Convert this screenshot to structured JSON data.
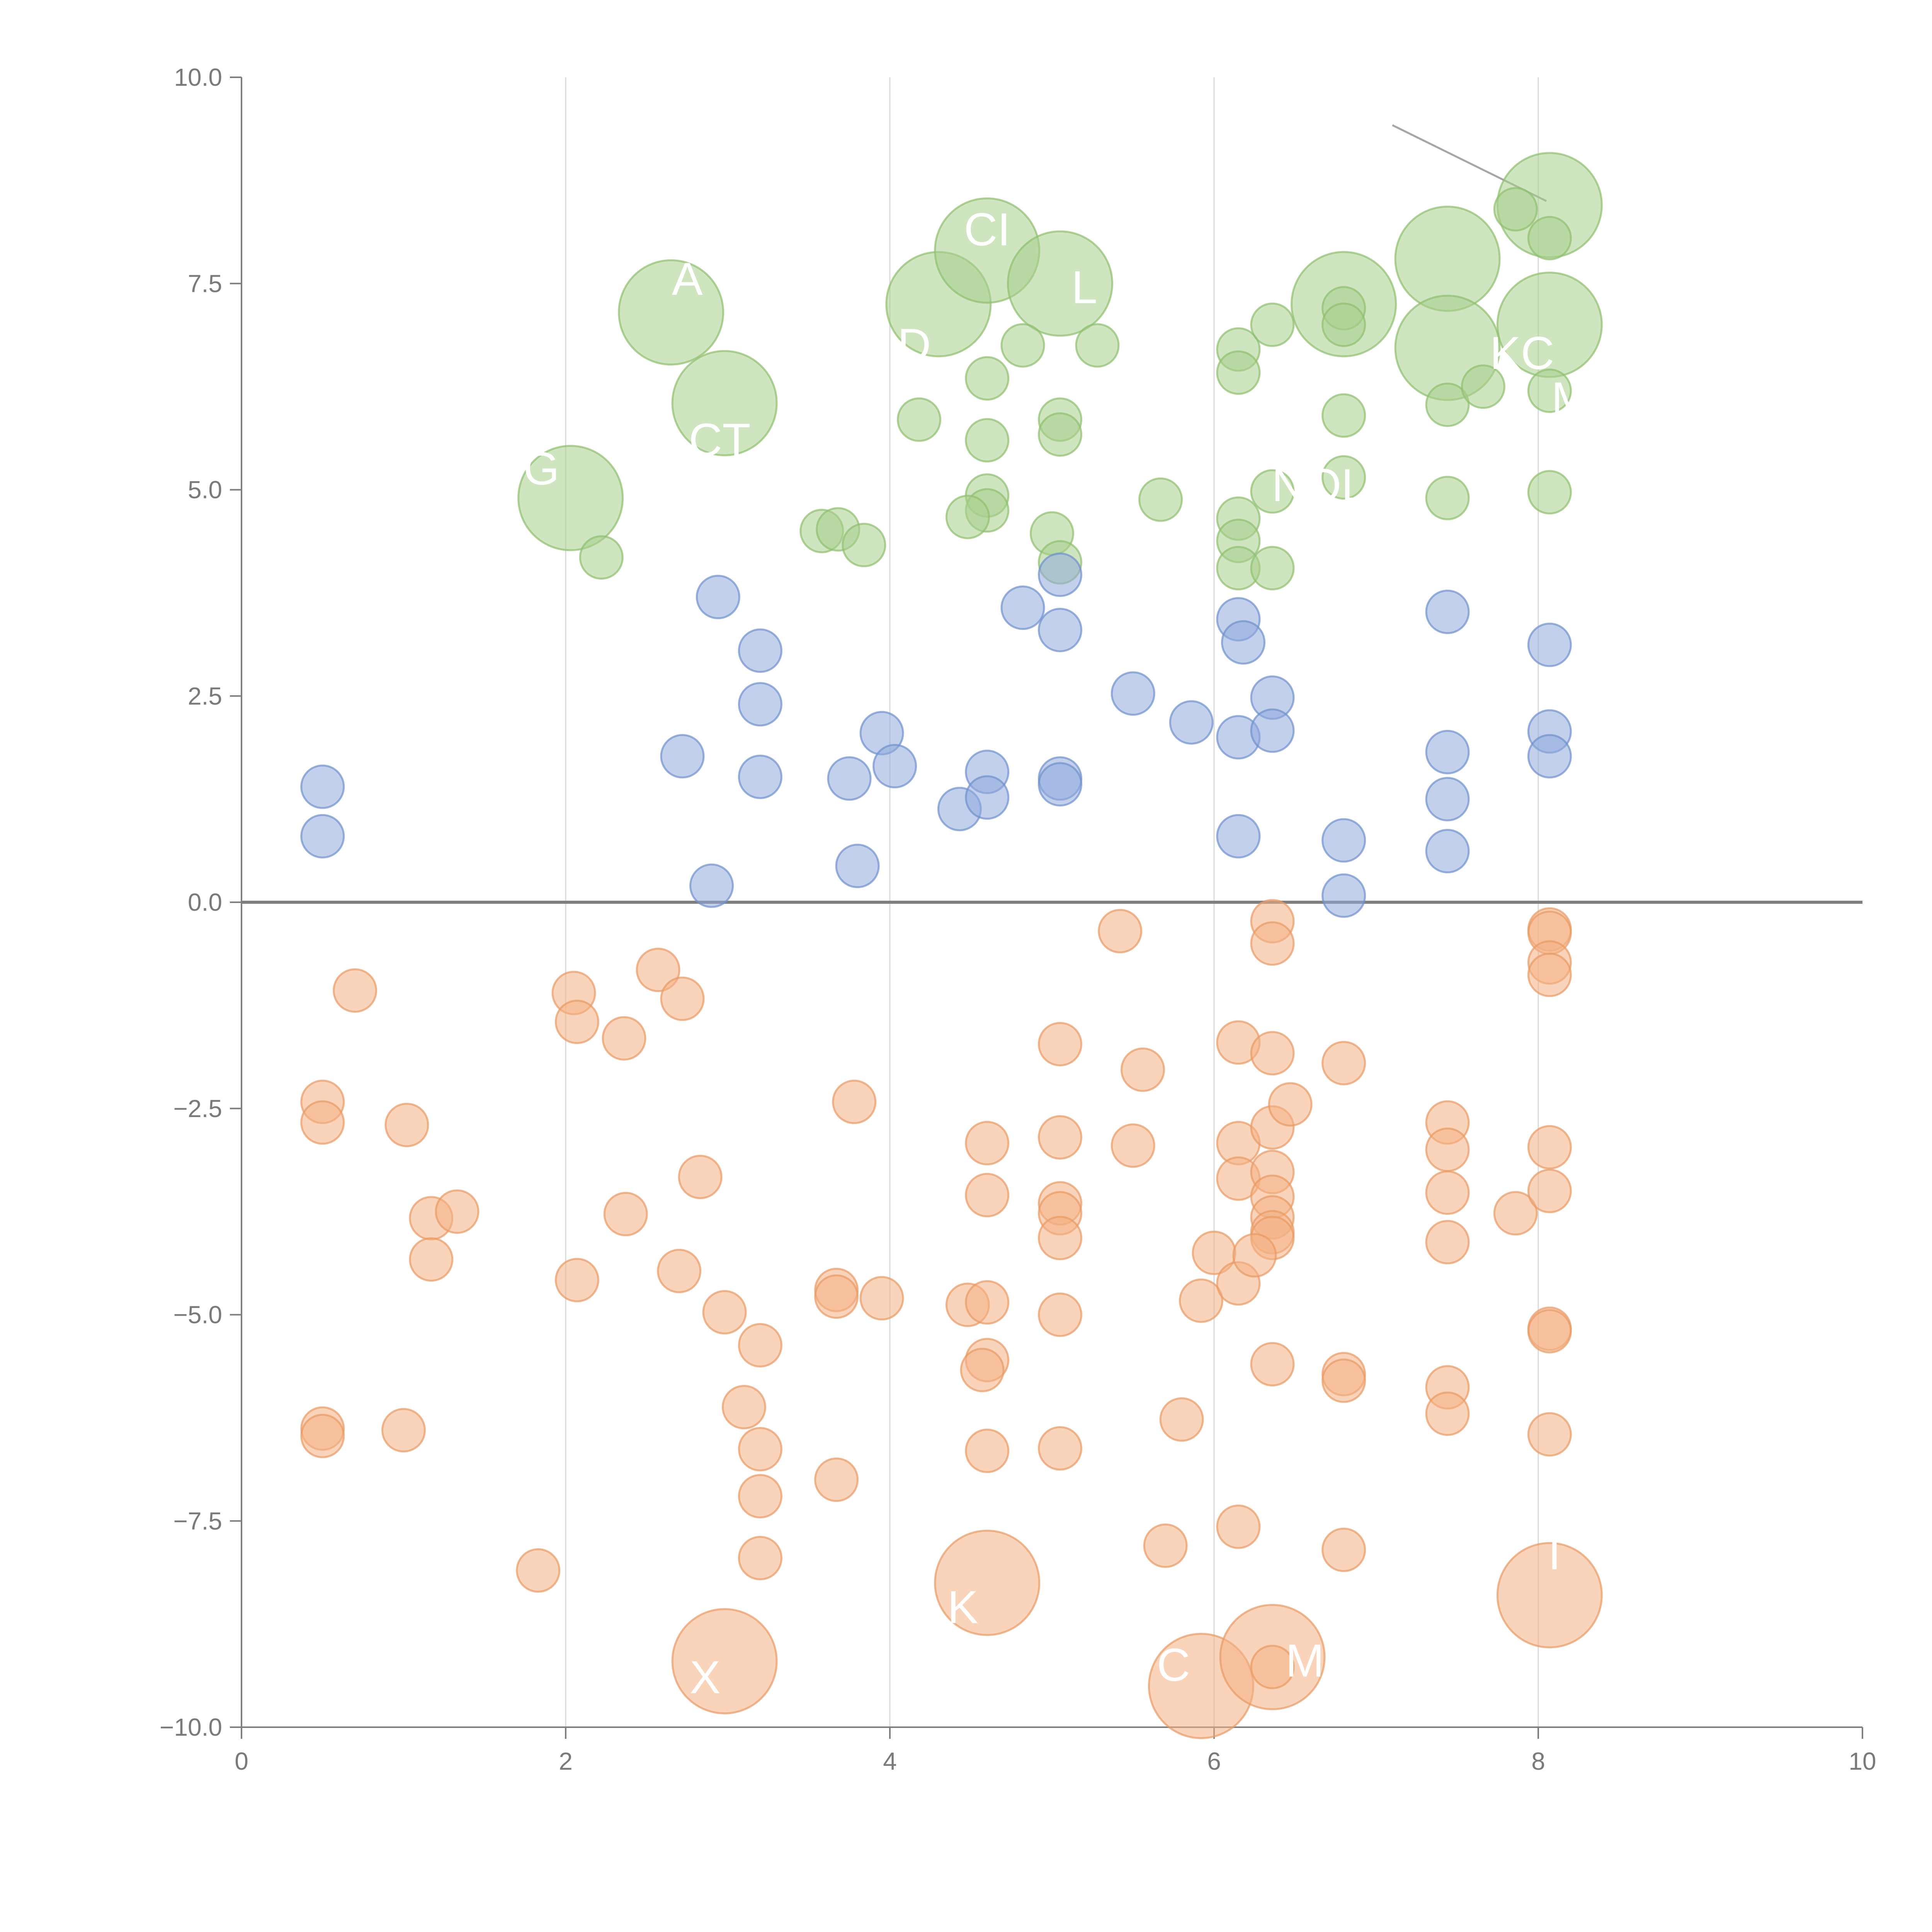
{
  "chart_data": {
    "type": "scatter",
    "title": "",
    "xlabel": "",
    "ylabel": "",
    "xlim": [
      0,
      10
    ],
    "ylim": [
      -10,
      10
    ],
    "x_ticks": [
      0,
      2,
      4,
      6,
      8,
      10
    ],
    "y_ticks": [
      -10.0,
      -7.5,
      -5.0,
      -2.5,
      0.0,
      2.5,
      5.0,
      7.5,
      10.0
    ],
    "x_tick_labels": [
      "0",
      "2",
      "4",
      "6",
      "8",
      "10"
    ],
    "y_tick_labels": [
      "−10.0",
      "−7.5",
      "−5.0",
      "−2.5",
      "0.0",
      "2.5",
      "5.0",
      "7.5",
      "10.0"
    ],
    "vertical_gridlines": [
      2,
      4,
      6,
      8
    ],
    "zero_line": true,
    "series": [
      {
        "color": "#a8d08d",
        "points": [
          [
            2.65,
            7.15,
            1
          ],
          [
            2.98,
            6.05,
            1
          ],
          [
            2.03,
            4.9,
            1
          ],
          [
            4.3,
            7.25,
            1
          ],
          [
            4.6,
            7.9,
            1
          ],
          [
            5.05,
            7.5,
            1
          ],
          [
            6.8,
            7.25,
            1
          ],
          [
            7.44,
            7.8,
            1
          ],
          [
            8.07,
            8.45,
            1
          ],
          [
            8.07,
            7.0,
            1
          ],
          [
            7.44,
            6.72,
            1
          ],
          [
            2.22,
            4.18,
            0
          ],
          [
            3.58,
            4.5,
            0
          ],
          [
            3.68,
            4.52,
            0
          ],
          [
            3.84,
            4.33,
            0
          ],
          [
            4.18,
            5.85,
            0
          ],
          [
            4.6,
            6.35,
            0
          ],
          [
            4.6,
            5.6,
            0
          ],
          [
            4.6,
            4.93,
            0
          ],
          [
            4.6,
            4.75,
            0
          ],
          [
            4.48,
            4.67,
            0
          ],
          [
            4.82,
            6.75,
            0
          ],
          [
            5.05,
            5.85,
            0
          ],
          [
            5.05,
            5.67,
            0
          ],
          [
            5.0,
            4.47,
            0
          ],
          [
            5.05,
            4.12,
            0
          ],
          [
            5.28,
            6.75,
            0
          ],
          [
            5.67,
            4.88,
            0
          ],
          [
            6.15,
            6.7,
            0
          ],
          [
            6.15,
            6.42,
            0
          ],
          [
            6.15,
            4.65,
            0
          ],
          [
            6.15,
            4.38,
            0
          ],
          [
            6.15,
            4.05,
            0
          ],
          [
            6.36,
            7.0,
            0
          ],
          [
            6.36,
            4.05,
            0
          ],
          [
            6.36,
            4.98,
            0
          ],
          [
            6.8,
            7.2,
            0
          ],
          [
            6.8,
            7.0,
            0
          ],
          [
            6.8,
            5.9,
            0
          ],
          [
            6.8,
            5.15,
            0
          ],
          [
            7.44,
            6.03,
            0
          ],
          [
            7.44,
            4.9,
            0
          ],
          [
            7.66,
            6.25,
            0
          ],
          [
            7.86,
            8.4,
            0
          ],
          [
            8.07,
            8.05,
            0
          ],
          [
            8.07,
            6.2,
            0
          ],
          [
            8.07,
            4.97,
            0
          ]
        ]
      },
      {
        "color": "#8faadc",
        "points": [
          [
            0.5,
            1.4,
            0
          ],
          [
            0.5,
            0.8,
            0
          ],
          [
            2.72,
            1.77,
            0
          ],
          [
            2.9,
            0.2,
            0
          ],
          [
            2.94,
            3.7,
            0
          ],
          [
            3.2,
            3.05,
            0
          ],
          [
            3.2,
            2.4,
            0
          ],
          [
            3.2,
            1.52,
            0
          ],
          [
            3.75,
            1.5,
            0
          ],
          [
            3.8,
            0.44,
            0
          ],
          [
            3.95,
            2.05,
            0
          ],
          [
            4.03,
            1.65,
            0
          ],
          [
            4.43,
            1.13,
            0
          ],
          [
            4.6,
            1.58,
            0
          ],
          [
            4.6,
            1.27,
            0
          ],
          [
            4.82,
            3.57,
            0
          ],
          [
            5.05,
            3.97,
            0
          ],
          [
            5.05,
            3.3,
            0
          ],
          [
            5.05,
            1.5,
            0
          ],
          [
            5.05,
            1.43,
            0
          ],
          [
            5.5,
            2.53,
            0
          ],
          [
            5.86,
            2.18,
            0
          ],
          [
            6.15,
            3.43,
            0
          ],
          [
            6.18,
            3.15,
            0
          ],
          [
            6.15,
            2.0,
            0
          ],
          [
            6.15,
            0.8,
            0
          ],
          [
            6.36,
            2.48,
            0
          ],
          [
            6.36,
            2.08,
            0
          ],
          [
            6.8,
            0.75,
            0
          ],
          [
            6.8,
            0.08,
            0
          ],
          [
            7.44,
            3.52,
            0
          ],
          [
            7.44,
            1.82,
            0
          ],
          [
            7.44,
            1.25,
            0
          ],
          [
            7.44,
            0.62,
            0
          ],
          [
            8.07,
            3.12,
            0
          ],
          [
            8.07,
            2.07,
            0
          ],
          [
            8.07,
            1.77,
            0
          ]
        ]
      },
      {
        "color": "#f4b183",
        "points": [
          [
            2.98,
            -9.2,
            1
          ],
          [
            4.6,
            -8.25,
            1
          ],
          [
            5.92,
            -9.5,
            1
          ],
          [
            6.36,
            -9.15,
            1
          ],
          [
            8.07,
            -8.4,
            1
          ],
          [
            0.5,
            -2.42,
            0
          ],
          [
            0.5,
            -2.67,
            0
          ],
          [
            0.5,
            -6.38,
            0
          ],
          [
            0.5,
            -6.47,
            0
          ],
          [
            0.7,
            -1.07,
            0
          ],
          [
            1.0,
            -6.4,
            0
          ],
          [
            1.02,
            -2.7,
            0
          ],
          [
            1.17,
            -3.83,
            0
          ],
          [
            1.17,
            -4.33,
            0
          ],
          [
            1.33,
            -3.75,
            0
          ],
          [
            1.83,
            -8.1,
            0
          ],
          [
            2.05,
            -1.1,
            0
          ],
          [
            2.07,
            -1.45,
            0
          ],
          [
            2.07,
            -4.58,
            0
          ],
          [
            2.36,
            -1.65,
            0
          ],
          [
            2.37,
            -3.78,
            0
          ],
          [
            2.57,
            -0.82,
            0
          ],
          [
            2.7,
            -4.47,
            0
          ],
          [
            2.72,
            -1.17,
            0
          ],
          [
            2.83,
            -3.33,
            0
          ],
          [
            2.98,
            -4.97,
            0
          ],
          [
            3.1,
            -6.12,
            0
          ],
          [
            3.2,
            -5.37,
            0
          ],
          [
            3.2,
            -6.63,
            0
          ],
          [
            3.2,
            -7.2,
            0
          ],
          [
            3.2,
            -7.95,
            0
          ],
          [
            3.67,
            -4.7,
            0
          ],
          [
            3.67,
            -4.78,
            0
          ],
          [
            3.67,
            -7.0,
            0
          ],
          [
            3.78,
            -2.42,
            0
          ],
          [
            3.95,
            -4.8,
            0
          ],
          [
            4.48,
            -4.88,
            0
          ],
          [
            4.6,
            -2.92,
            0
          ],
          [
            4.6,
            -3.55,
            0
          ],
          [
            4.6,
            -4.85,
            0
          ],
          [
            4.6,
            -5.55,
            0
          ],
          [
            4.57,
            -5.67,
            0
          ],
          [
            4.6,
            -6.65,
            0
          ],
          [
            5.05,
            -1.72,
            0
          ],
          [
            5.05,
            -2.85,
            0
          ],
          [
            5.05,
            -3.65,
            0
          ],
          [
            5.05,
            -3.77,
            0
          ],
          [
            5.05,
            -4.07,
            0
          ],
          [
            5.05,
            -5.0,
            0
          ],
          [
            5.05,
            -6.62,
            0
          ],
          [
            5.42,
            -0.35,
            0
          ],
          [
            5.5,
            -2.95,
            0
          ],
          [
            5.56,
            -2.03,
            0
          ],
          [
            5.7,
            -7.8,
            0
          ],
          [
            5.8,
            -6.27,
            0
          ],
          [
            5.92,
            -4.83,
            0
          ],
          [
            6.0,
            -4.25,
            0
          ],
          [
            6.15,
            -1.7,
            0
          ],
          [
            6.15,
            -2.92,
            0
          ],
          [
            6.15,
            -3.35,
            0
          ],
          [
            6.15,
            -4.62,
            0
          ],
          [
            6.15,
            -7.57,
            0
          ],
          [
            6.36,
            -0.23,
            0
          ],
          [
            6.36,
            -0.5,
            0
          ],
          [
            6.36,
            -1.83,
            0
          ],
          [
            6.36,
            -2.73,
            0
          ],
          [
            6.36,
            -3.27,
            0
          ],
          [
            6.36,
            -3.57,
            0
          ],
          [
            6.36,
            -3.82,
            0
          ],
          [
            6.36,
            -4.0,
            0
          ],
          [
            6.36,
            -4.07,
            0
          ],
          [
            6.47,
            -2.45,
            0
          ],
          [
            6.36,
            -5.6,
            0
          ],
          [
            6.36,
            -9.27,
            0
          ],
          [
            6.8,
            -1.95,
            0
          ],
          [
            6.8,
            -5.72,
            0
          ],
          [
            6.8,
            -5.8,
            0
          ],
          [
            6.8,
            -7.85,
            0
          ],
          [
            7.44,
            -2.67,
            0
          ],
          [
            7.44,
            -3.0,
            0
          ],
          [
            7.44,
            -3.52,
            0
          ],
          [
            7.44,
            -4.12,
            0
          ],
          [
            7.44,
            -5.88,
            0
          ],
          [
            7.44,
            -6.2,
            0
          ],
          [
            7.86,
            -3.77,
            0
          ],
          [
            8.07,
            -0.33,
            0
          ],
          [
            8.07,
            -0.37,
            0
          ],
          [
            8.07,
            -0.73,
            0
          ],
          [
            8.07,
            -0.88,
            0
          ],
          [
            8.07,
            -2.97,
            0
          ],
          [
            8.07,
            -3.5,
            0
          ],
          [
            8.07,
            -5.17,
            0
          ],
          [
            8.07,
            -5.2,
            0
          ],
          [
            8.07,
            -6.45,
            0
          ],
          [
            6.25,
            -4.28,
            0
          ]
        ]
      }
    ],
    "annotations": [
      {
        "text": "A",
        "x": 2.75,
        "y": 7.55
      },
      {
        "text": "CT",
        "x": 2.95,
        "y": 5.6
      },
      {
        "text": "G",
        "x": 1.85,
        "y": 5.25
      },
      {
        "text": "D",
        "x": 4.15,
        "y": 6.75
      },
      {
        "text": "CI",
        "x": 4.6,
        "y": 8.15
      },
      {
        "text": "L",
        "x": 5.2,
        "y": 7.45
      },
      {
        "text": "KC",
        "x": 7.9,
        "y": 6.65
      },
      {
        "text": "NOL",
        "x": 6.65,
        "y": 5.05
      },
      {
        "text": "M",
        "x": 8.2,
        "y": 6.1
      },
      {
        "text": "X",
        "x": 2.86,
        "y": -9.4
      },
      {
        "text": "K",
        "x": 4.45,
        "y": -8.55
      },
      {
        "text": "C",
        "x": 5.75,
        "y": -9.25
      },
      {
        "text": "MI",
        "x": 6.6,
        "y": -9.2
      },
      {
        "text": "T",
        "x": 8.1,
        "y": -7.9
      }
    ]
  }
}
